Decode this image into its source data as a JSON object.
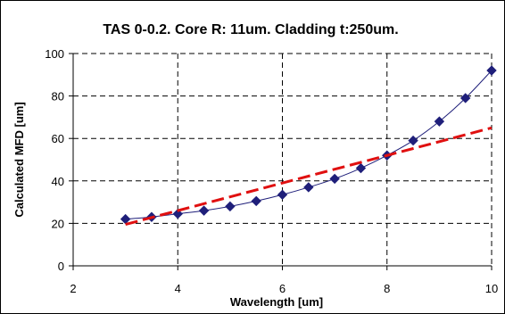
{
  "chart_data": {
    "type": "line",
    "title": "TAS 0-0.2. Core R: 11um. Cladding t:250um.",
    "xlabel": "Wavelength  [um]",
    "ylabel": "Calculated MFD  [um]",
    "xlim": [
      2,
      10
    ],
    "ylim": [
      0,
      100
    ],
    "xticks": [
      2,
      4,
      6,
      8,
      10
    ],
    "yticks": [
      0,
      20,
      40,
      60,
      80,
      100
    ],
    "grid": true,
    "series": [
      {
        "color": "#1f1f7a",
        "marker": "diamond",
        "line_style": "solid",
        "x": [
          3,
          3.5,
          4,
          4.5,
          5,
          5.5,
          6,
          6.5,
          7,
          7.5,
          8,
          8.5,
          9,
          9.5,
          10
        ],
        "y": [
          22,
          23,
          24.5,
          26,
          28,
          30.5,
          33.5,
          37,
          41,
          46,
          52,
          59,
          68,
          79,
          92
        ]
      },
      {
        "color": "#e01010",
        "marker": "none",
        "line_style": "dashed",
        "x": [
          3,
          4,
          5,
          6,
          7,
          8,
          9,
          10
        ],
        "y": [
          19.5,
          26,
          32.5,
          39,
          45.5,
          52,
          58.5,
          65
        ]
      }
    ]
  }
}
